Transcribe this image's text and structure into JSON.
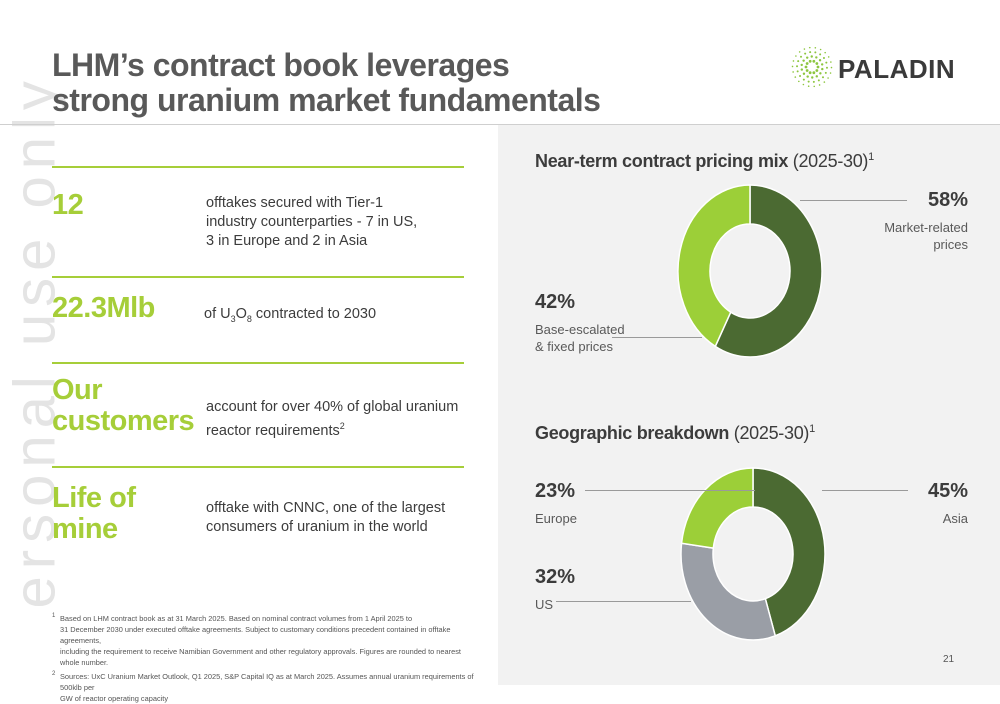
{
  "title": {
    "line1": "LHM’s contract book leverages",
    "line2": "strong uranium market fundamentals"
  },
  "logo": {
    "text": "PALADIN",
    "icon": "paladin-burst-icon",
    "color": "#8dc63f"
  },
  "watermark": "ersonal use only",
  "metrics": [
    {
      "value": "12",
      "desc_lines": [
        "offtakes secured with Tier-1",
        "industry counterparties - 7 in US,",
        "3 in Europe and 2 in Asia"
      ]
    },
    {
      "value": "22.3Mlb",
      "desc_pre": "of U",
      "desc_sub1": "3",
      "desc_mid": "O",
      "desc_sub2": "8",
      "desc_post": " contracted to 2030"
    },
    {
      "value_lines": [
        "Our",
        "customers"
      ],
      "desc_line1": "account for over 40% of global uranium",
      "desc_line2": "reactor requirements",
      "desc_sup": "2"
    },
    {
      "value_lines": [
        "Life of",
        "mine"
      ],
      "desc_lines": [
        "offtake with CNNC, one of the largest",
        "consumers of uranium in the world"
      ]
    }
  ],
  "footnotes": [
    {
      "num": "1",
      "lines": [
        "Based on LHM contract book as at 31 March 2025. Based on nominal contract volumes from 1 April 2025 to",
        "31 December 2030 under executed offtake agreements. Subject to customary conditions precedent contained in offtake agreements,",
        "including the requirement to receive Namibian Government and other regulatory approvals. Figures are rounded to nearest whole number."
      ]
    },
    {
      "num": "2",
      "lines": [
        "Sources: UxC Uranium Market Outlook, Q1 2025, S&P Capital IQ as at March 2025. Assumes annual uranium requirements of 500klb per",
        "GW of reactor operating capacity"
      ]
    }
  ],
  "page_number": "21",
  "colors": {
    "accent": "#a6ce39",
    "dark_green": "#4b6a32",
    "light_green": "#9ccf38",
    "grey": "#9a9ea6"
  },
  "chart_data": [
    {
      "type": "pie",
      "variant": "donut",
      "title": "Near-term contract pricing mix",
      "title_rest": " (2025-30)",
      "title_sup": "1",
      "categories": [
        "Market-related prices",
        "Base-escalated & fixed prices"
      ],
      "values": [
        58,
        42
      ],
      "value_labels": [
        "58%",
        "42%"
      ],
      "label_lines": [
        [
          "Market-related",
          "prices"
        ],
        [
          "Base-escalated",
          "& fixed prices"
        ]
      ],
      "colors": [
        "#4b6a32",
        "#9ccf38"
      ]
    },
    {
      "type": "pie",
      "variant": "donut",
      "title": "Geographic breakdown",
      "title_rest": " (2025-30)",
      "title_sup": "1",
      "categories": [
        "Asia",
        "US",
        "Europe"
      ],
      "values": [
        45,
        32,
        23
      ],
      "value_labels": [
        "45%",
        "32%",
        "23%"
      ],
      "colors": [
        "#4b6a32",
        "#9a9ea6",
        "#9ccf38"
      ]
    }
  ]
}
